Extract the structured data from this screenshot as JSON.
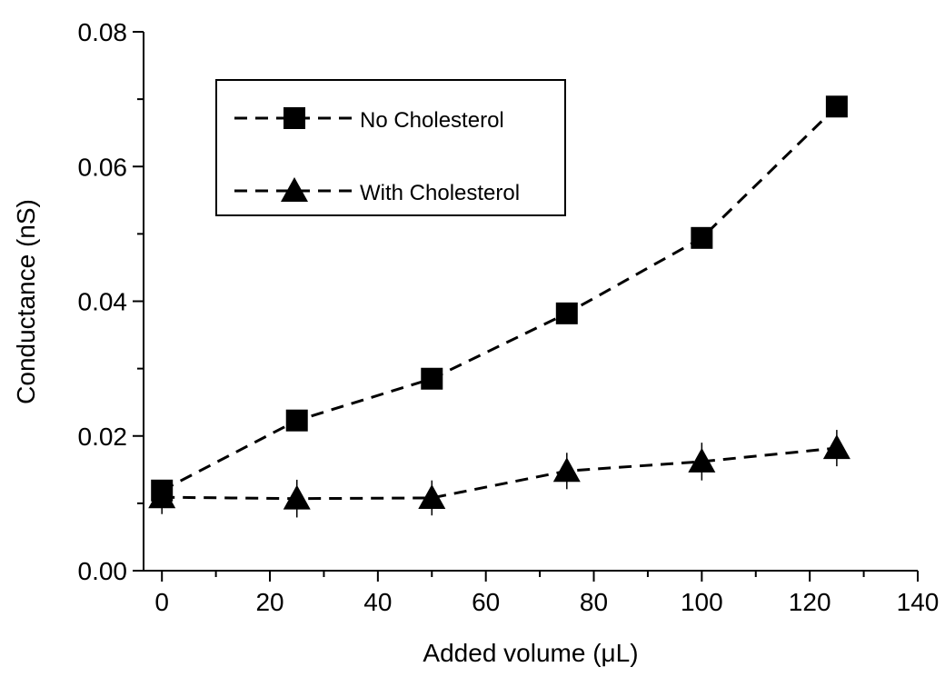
{
  "chart_data": {
    "type": "line",
    "x_label": "Added volume (μL)",
    "y_label": "Conductance (nS)",
    "xlim": [
      -3.4,
      140
    ],
    "ylim": [
      0,
      0.08
    ],
    "xticks": [
      0,
      20,
      40,
      60,
      80,
      100,
      120,
      140
    ],
    "xminorticks": [
      10,
      30,
      50,
      70,
      90,
      110,
      130
    ],
    "yticks": [
      {
        "value": 0,
        "label": "0.00"
      },
      0.02,
      0.04,
      0.06,
      0.08
    ],
    "yminorticks": [
      0.01,
      0.03,
      0.05,
      0.07
    ],
    "x": [
      0,
      25,
      50,
      75,
      100,
      125
    ],
    "legend": "upper left",
    "series": [
      {
        "name": "No Cholesterol",
        "color": "#000000",
        "marker": "square",
        "values": [
          0.0119,
          0.0223,
          0.0285,
          0.0382,
          0.0494,
          0.0689
        ]
      },
      {
        "name": "With Cholesterol",
        "color": "#000000",
        "marker": "triangle",
        "values": [
          0.0109,
          0.0107,
          0.0108,
          0.0148,
          0.0162,
          0.0182
        ],
        "errors": [
          0.0025,
          0.0028,
          0.0026,
          0.0027,
          0.0028,
          0.0027
        ]
      }
    ]
  }
}
